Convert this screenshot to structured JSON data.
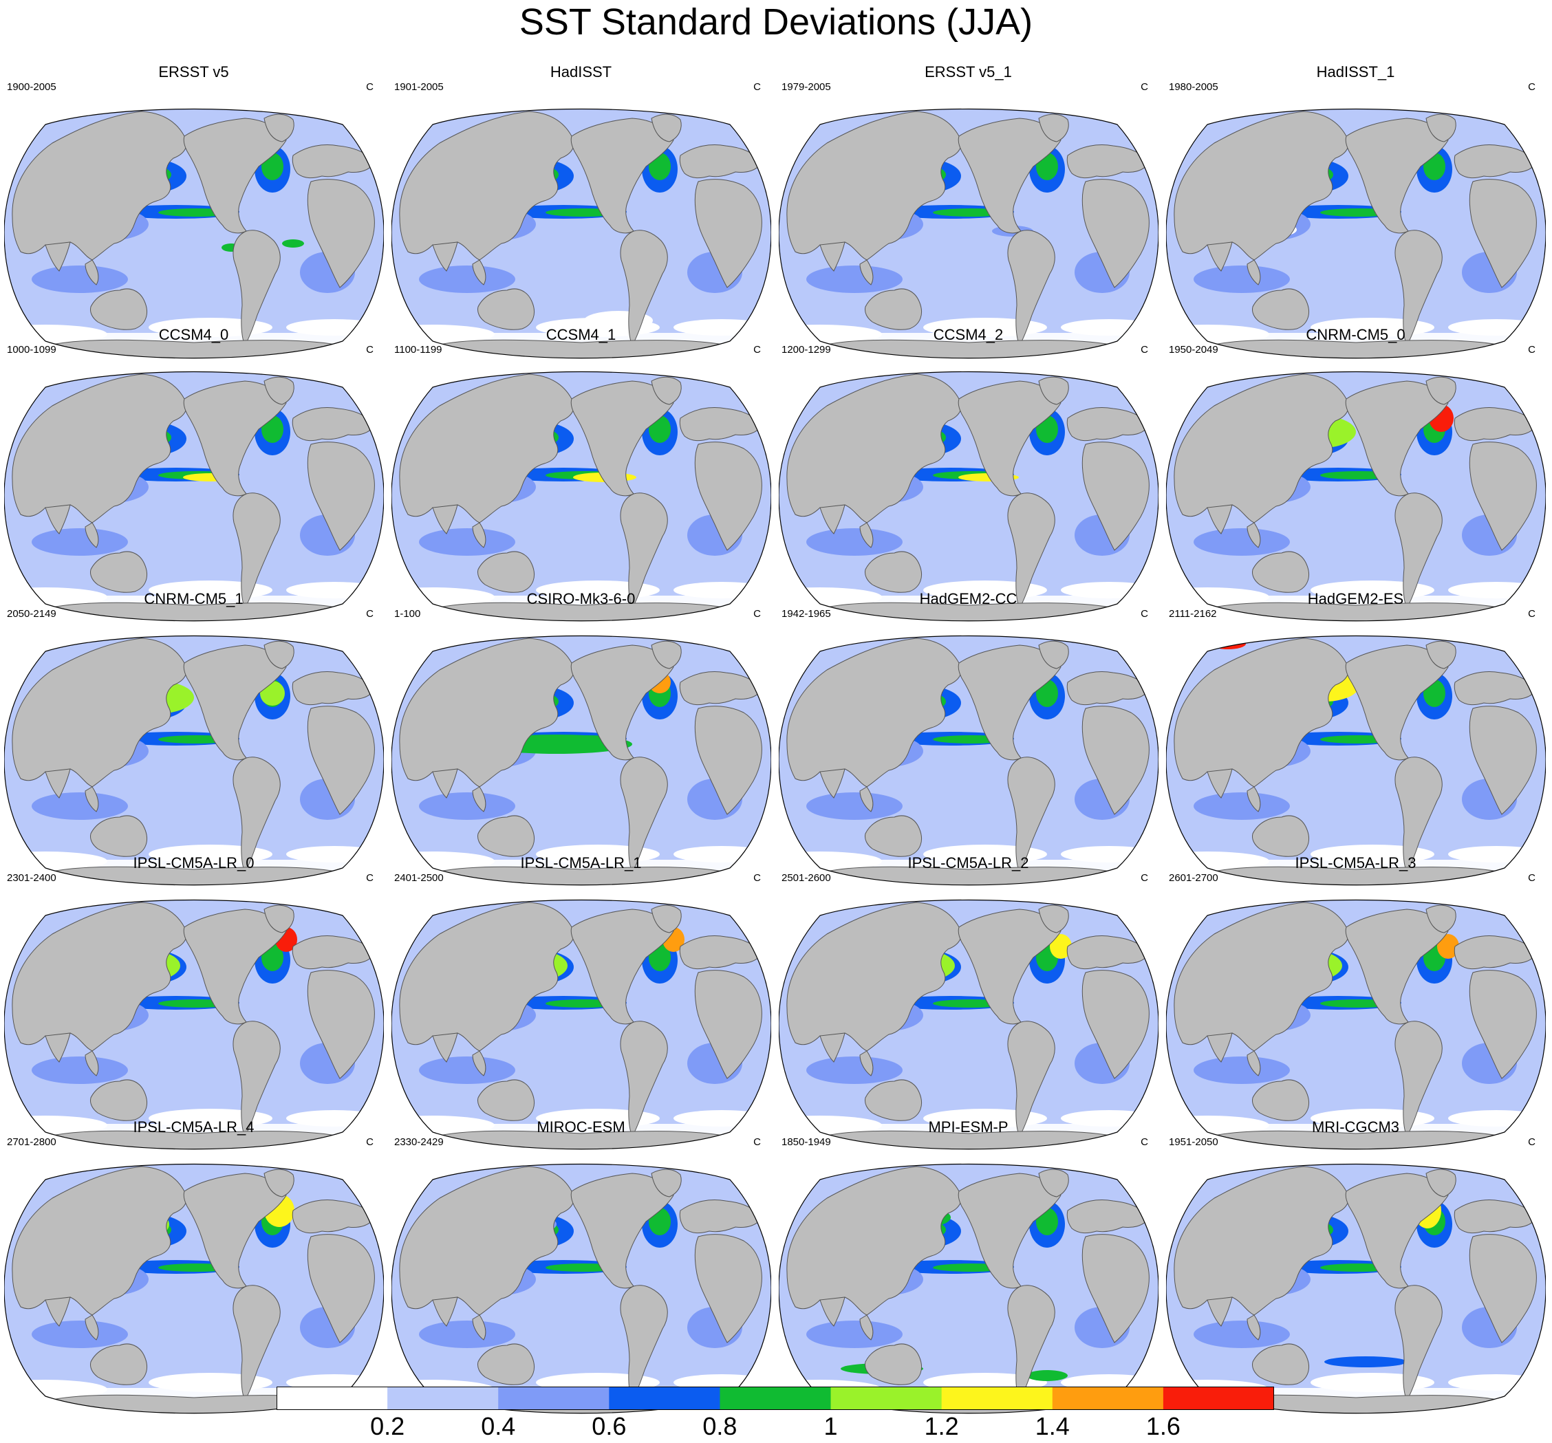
{
  "title": "SST Standard Deviations (JJA)",
  "unit": "C",
  "colors": {
    "land": "#bdbdbd",
    "coast": "#555555",
    "levels": [
      "#ffffff",
      "#b9c9fa",
      "#7f9bf7",
      "#0b5cf0",
      "#10bb32",
      "#9af22a",
      "#fdf51c",
      "#ff9d0f",
      "#f91d0a"
    ]
  },
  "colorbar": {
    "labels": [
      "0.2",
      "0.4",
      "0.6",
      "0.8",
      "1",
      "1.2",
      "1.4",
      "1.6"
    ]
  },
  "panels": [
    {
      "name": "ERSST v5",
      "period": "1900-2005"
    },
    {
      "name": "HadISST",
      "period": "1901-2005"
    },
    {
      "name": "ERSST v5_1",
      "period": "1979-2005"
    },
    {
      "name": "HadISST_1",
      "period": "1980-2005"
    },
    {
      "name": "CCSM4_0",
      "period": "1000-1099"
    },
    {
      "name": "CCSM4_1",
      "period": "1100-1199"
    },
    {
      "name": "CCSM4_2",
      "period": "1200-1299"
    },
    {
      "name": "CNRM-CM5_0",
      "period": "1950-2049"
    },
    {
      "name": "CNRM-CM5_1",
      "period": "2050-2149"
    },
    {
      "name": "CSIRO-Mk3-6-0",
      "period": "1-100"
    },
    {
      "name": "HadGEM2-CC",
      "period": "1942-1965"
    },
    {
      "name": "HadGEM2-ES",
      "period": "2111-2162"
    },
    {
      "name": "IPSL-CM5A-LR_0",
      "period": "2301-2400"
    },
    {
      "name": "IPSL-CM5A-LR_1",
      "period": "2401-2500"
    },
    {
      "name": "IPSL-CM5A-LR_2",
      "period": "2501-2600"
    },
    {
      "name": "IPSL-CM5A-LR_3",
      "period": "2601-2700"
    },
    {
      "name": "IPSL-CM5A-LR_4",
      "period": "2701-2800"
    },
    {
      "name": "MIROC-ESM",
      "period": "2330-2429"
    },
    {
      "name": "MPI-ESM-P",
      "period": "1850-1949"
    },
    {
      "name": "MRI-CGCM3",
      "period": "1951-2050"
    }
  ]
}
